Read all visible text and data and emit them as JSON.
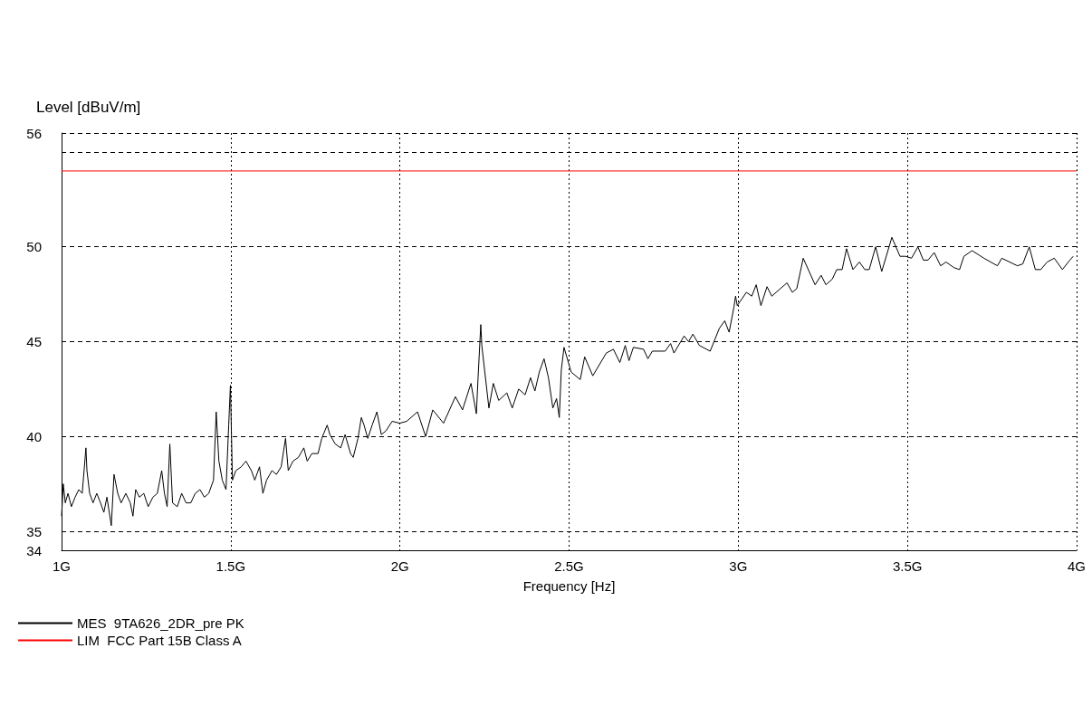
{
  "chart_data": {
    "type": "line",
    "xlabel": "Frequency [Hz]",
    "ylabel": "Level [dBuV/m]",
    "xlim": [
      1,
      4
    ],
    "xticks": [
      {
        "value": 1,
        "label": "1G"
      },
      {
        "value": 1.5,
        "label": "1.5G"
      },
      {
        "value": 2,
        "label": "2G"
      },
      {
        "value": 2.5,
        "label": "2.5G"
      },
      {
        "value": 3,
        "label": "3G"
      },
      {
        "value": 3.5,
        "label": "3.5G"
      },
      {
        "value": 4,
        "label": "4G"
      }
    ],
    "ylim": [
      34,
      56
    ],
    "yticks": [
      34,
      35,
      40,
      45,
      50,
      {
        "value": 55,
        "label": null
      },
      56
    ],
    "grid": true,
    "legend": "bottom left",
    "marker": "none",
    "series": [
      {
        "name": "MES  9TA626_2DR_pre PK",
        "color": "#000000",
        "x": [
          1.0,
          1.005,
          1.011,
          1.019,
          1.029,
          1.04,
          1.051,
          1.061,
          1.072,
          1.075,
          1.083,
          1.093,
          1.104,
          1.115,
          1.125,
          1.134,
          1.147,
          1.155,
          1.166,
          1.176,
          1.19,
          1.203,
          1.211,
          1.219,
          1.23,
          1.243,
          1.256,
          1.27,
          1.283,
          1.296,
          1.304,
          1.312,
          1.32,
          1.328,
          1.342,
          1.355,
          1.368,
          1.382,
          1.395,
          1.409,
          1.422,
          1.435,
          1.449,
          1.457,
          1.465,
          1.475,
          1.486,
          1.494,
          1.499,
          1.505,
          1.515,
          1.531,
          1.545,
          1.561,
          1.571,
          1.585,
          1.595,
          1.606,
          1.622,
          1.635,
          1.649,
          1.662,
          1.67,
          1.684,
          1.7,
          1.716,
          1.726,
          1.74,
          1.758,
          1.769,
          1.785,
          1.793,
          1.809,
          1.825,
          1.838,
          1.854,
          1.862,
          1.876,
          1.886,
          1.894,
          1.905,
          1.918,
          1.932,
          1.945,
          1.959,
          1.977,
          1.999,
          2.02,
          2.052,
          2.076,
          2.097,
          2.129,
          2.164,
          2.185,
          2.21,
          2.226,
          2.231,
          2.239,
          2.242,
          2.263,
          2.276,
          2.292,
          2.316,
          2.332,
          2.351,
          2.37,
          2.386,
          2.399,
          2.412,
          2.426,
          2.439,
          2.452,
          2.463,
          2.471,
          2.477,
          2.485,
          2.506,
          2.533,
          2.546,
          2.57,
          2.61,
          2.631,
          2.65,
          2.666,
          2.677,
          2.69,
          2.72,
          2.733,
          2.746,
          2.784,
          2.8,
          2.81,
          2.84,
          2.853,
          2.866,
          2.885,
          2.917,
          2.944,
          2.96,
          2.973,
          2.987,
          2.992,
          2.997,
          3.024,
          3.04,
          3.053,
          3.067,
          3.085,
          3.099,
          3.144,
          3.16,
          3.173,
          3.192,
          3.227,
          3.245,
          3.259,
          3.278,
          3.291,
          3.307,
          3.32,
          3.339,
          3.358,
          3.374,
          3.387,
          3.406,
          3.424,
          3.454,
          3.478,
          3.494,
          3.512,
          3.531,
          3.547,
          3.561,
          3.579,
          3.598,
          3.614,
          3.638,
          3.654,
          3.667,
          3.691,
          3.726,
          3.766,
          3.779,
          3.825,
          3.841,
          3.86,
          3.878,
          3.894,
          3.913,
          3.934,
          3.958,
          3.98,
          3.99
        ],
        "values": [
          35.8,
          37.5,
          36.5,
          37.0,
          36.3,
          36.8,
          37.2,
          37.0,
          39.4,
          38.2,
          37.0,
          36.5,
          37.0,
          36.5,
          36.0,
          36.8,
          35.3,
          38.0,
          37.0,
          36.5,
          37.0,
          36.5,
          35.8,
          37.2,
          36.8,
          37.0,
          36.3,
          36.8,
          37.0,
          38.2,
          37.0,
          36.3,
          39.6,
          36.5,
          36.3,
          37.0,
          36.5,
          36.5,
          37.0,
          37.2,
          36.8,
          37.0,
          37.7,
          41.3,
          38.7,
          37.7,
          37.2,
          40.6,
          42.7,
          37.7,
          38.2,
          38.4,
          38.7,
          38.2,
          37.7,
          38.4,
          37.0,
          37.7,
          38.2,
          38.0,
          38.4,
          39.9,
          38.2,
          38.7,
          38.9,
          39.4,
          38.7,
          39.1,
          39.1,
          39.9,
          40.6,
          40.1,
          39.6,
          39.4,
          40.1,
          39.1,
          38.9,
          39.9,
          41.0,
          40.6,
          39.9,
          40.6,
          41.3,
          40.1,
          40.3,
          40.8,
          40.7,
          40.8,
          41.3,
          40.0,
          41.4,
          40.7,
          42.1,
          41.4,
          42.8,
          41.2,
          43.1,
          45.9,
          44.8,
          41.5,
          42.8,
          41.9,
          42.3,
          41.5,
          42.5,
          42.2,
          43.1,
          42.4,
          43.4,
          44.1,
          43.1,
          41.5,
          42.0,
          41.0,
          43.5,
          44.7,
          43.4,
          43.0,
          44.2,
          43.2,
          44.4,
          44.6,
          43.9,
          44.8,
          44.0,
          44.7,
          44.6,
          44.1,
          44.5,
          44.5,
          44.9,
          44.4,
          45.3,
          45.0,
          45.4,
          44.8,
          44.5,
          45.7,
          46.1,
          45.5,
          46.8,
          47.4,
          46.9,
          47.6,
          47.4,
          48.0,
          46.9,
          47.9,
          47.4,
          48.1,
          47.6,
          47.8,
          49.4,
          48.0,
          48.5,
          48.0,
          48.3,
          48.8,
          48.8,
          49.9,
          48.8,
          49.2,
          48.8,
          48.8,
          50.0,
          48.7,
          50.5,
          49.5,
          49.5,
          49.4,
          50.0,
          49.3,
          49.3,
          49.7,
          49.0,
          49.2,
          48.9,
          48.8,
          49.5,
          49.8,
          49.4,
          49.0,
          49.4,
          49.0,
          49.1,
          50.0,
          48.8,
          48.8,
          49.2,
          49.4,
          48.8,
          49.3,
          49.5
        ]
      },
      {
        "name": "LIM  FCC Part 15B Class A",
        "color": "#ff0000",
        "x": [
          1,
          4
        ],
        "values": [
          54,
          54
        ]
      }
    ]
  }
}
